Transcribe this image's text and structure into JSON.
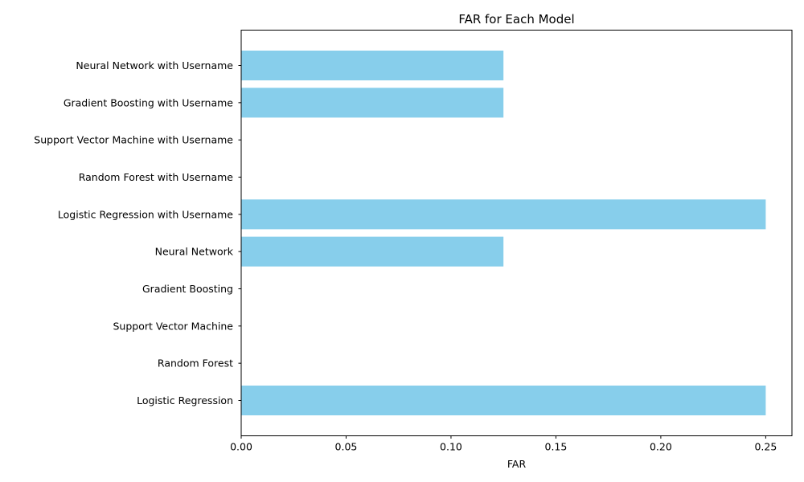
{
  "chart_data": {
    "type": "bar",
    "orientation": "horizontal",
    "title": "FAR for Each Model",
    "xlabel": "FAR",
    "ylabel": "",
    "categories": [
      "Logistic Regression",
      "Random Forest",
      "Support Vector Machine",
      "Gradient Boosting",
      "Neural Network",
      "Logistic Regression with Username",
      "Random Forest with Username",
      "Support Vector Machine with Username",
      "Gradient Boosting with Username",
      "Neural Network with Username"
    ],
    "values": [
      0.25,
      0.0,
      0.0,
      0.0,
      0.125,
      0.25,
      0.0,
      0.0,
      0.125,
      0.125
    ],
    "xlim": [
      0,
      0.2625
    ],
    "xticks": [
      0.0,
      0.05,
      0.1,
      0.15,
      0.2,
      0.25
    ],
    "xtick_labels": [
      "0.00",
      "0.05",
      "0.10",
      "0.15",
      "0.20",
      "0.25"
    ],
    "grid": false,
    "legend": "none",
    "bar_color": "#87ceeb"
  }
}
